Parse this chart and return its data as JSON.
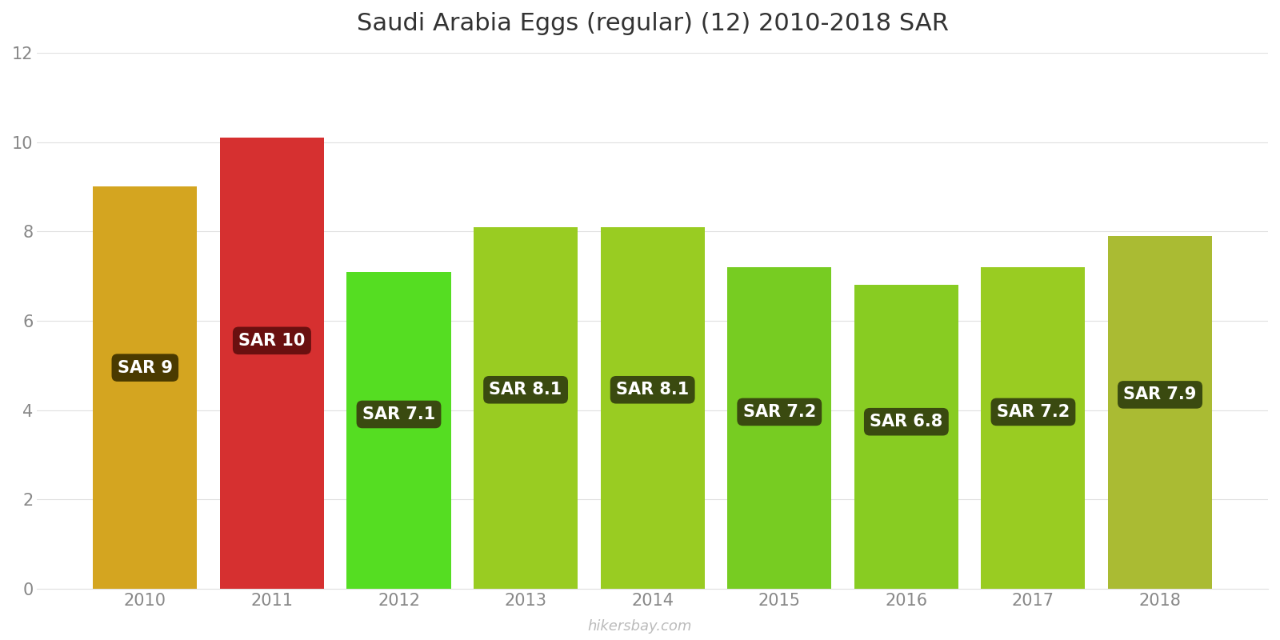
{
  "title": "Saudi Arabia Eggs (regular) (12) 2010-2018 SAR",
  "years": [
    2010,
    2011,
    2012,
    2013,
    2014,
    2015,
    2016,
    2017,
    2018
  ],
  "values": [
    9.0,
    10.1,
    7.1,
    8.1,
    8.1,
    7.2,
    6.8,
    7.2,
    7.9
  ],
  "labels": [
    "SAR 9",
    "SAR 10",
    "SAR 7.1",
    "SAR 8.1",
    "SAR 8.1",
    "SAR 7.2",
    "SAR 6.8",
    "SAR 7.2",
    "SAR 7.9"
  ],
  "bar_colors": [
    "#d4a520",
    "#d63030",
    "#55dd22",
    "#99cc22",
    "#99cc22",
    "#77cc22",
    "#88cc22",
    "#99cc22",
    "#aabb33"
  ],
  "label_box_colors": [
    "#4a3a00",
    "#6a1010",
    "#3a4a10",
    "#3a4a10",
    "#3a4a10",
    "#3a4a10",
    "#3a4a10",
    "#3a4a10",
    "#3a4a10"
  ],
  "ylim": [
    0,
    12
  ],
  "yticks": [
    0,
    2,
    4,
    6,
    8,
    10,
    12
  ],
  "background_color": "#ffffff",
  "watermark": "hikersbay.com",
  "title_fontsize": 22,
  "label_fontsize": 15,
  "tick_fontsize": 15,
  "bar_width": 0.82
}
